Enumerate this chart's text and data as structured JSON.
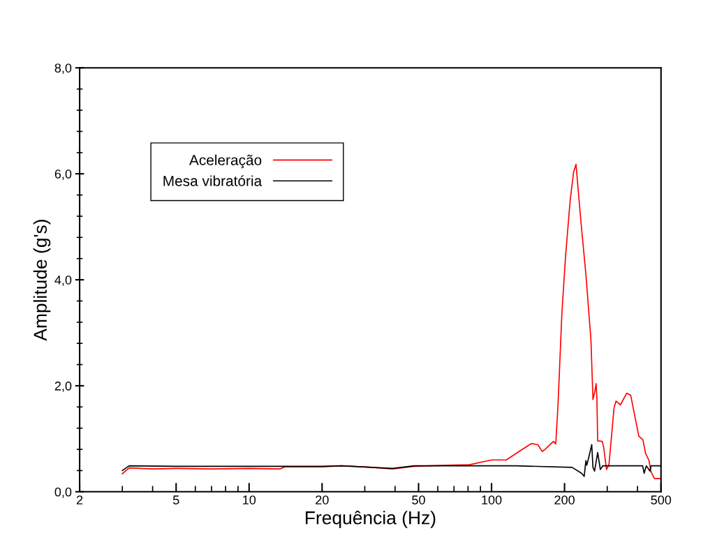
{
  "chart_data": {
    "type": "line",
    "xlabel": "Frequência (Hz)",
    "ylabel": "Amplitude (g's)",
    "log": "x",
    "grid": false,
    "legend": "top left",
    "marker": "none",
    "line_style": "solid",
    "xlim": [
      2,
      500
    ],
    "xticks": [
      2,
      5,
      10,
      20,
      50,
      100,
      200,
      500
    ],
    "ylim": [
      0,
      8
    ],
    "yticks": [
      {
        "value": 0,
        "label": "0,0"
      },
      {
        "value": 2,
        "label": "2,0"
      },
      {
        "value": 4,
        "label": "4,0"
      },
      {
        "value": 6,
        "label": "6,0"
      },
      {
        "value": 8,
        "label": "8,0"
      }
    ],
    "series": [
      {
        "name": "Aceleração",
        "color": "#ff0000",
        "x": [
          3.0,
          3.2,
          4,
          5,
          7,
          10,
          13.4,
          14,
          20,
          24,
          30,
          39,
          48,
          65,
          81,
          100,
          115,
          133,
          146,
          155,
          162,
          167,
          180,
          184,
          188,
          195,
          202,
          211,
          218,
          223,
          234,
          245,
          257,
          262,
          267,
          270,
          272,
          274,
          286,
          290,
          298,
          305,
          320,
          326,
          340,
          361,
          375,
          405,
          421,
          432,
          446,
          455,
          470,
          500
        ],
        "values": [
          0.34,
          0.45,
          0.43,
          0.44,
          0.43,
          0.44,
          0.43,
          0.47,
          0.47,
          0.49,
          0.47,
          0.43,
          0.48,
          0.5,
          0.51,
          0.6,
          0.6,
          0.79,
          0.91,
          0.89,
          0.76,
          0.81,
          0.95,
          0.9,
          1.64,
          3.36,
          4.45,
          5.5,
          6.03,
          6.18,
          5.07,
          4.1,
          2.87,
          1.74,
          1.9,
          2.04,
          1.74,
          0.96,
          0.95,
          0.84,
          0.42,
          0.51,
          1.58,
          1.71,
          1.64,
          1.86,
          1.82,
          1.05,
          0.98,
          0.72,
          0.59,
          0.37,
          0.25,
          0.25
        ]
      },
      {
        "name": "Mesa vibratória",
        "color": "#000000",
        "x": [
          3.0,
          3.2,
          5,
          10,
          20,
          24,
          39,
          48,
          126,
          215,
          235,
          241,
          245,
          247,
          250,
          259,
          262,
          266,
          274,
          281,
          288,
          420,
          426,
          435,
          450,
          455,
          500
        ],
        "values": [
          0.4,
          0.49,
          0.48,
          0.48,
          0.48,
          0.49,
          0.44,
          0.49,
          0.49,
          0.46,
          0.35,
          0.29,
          0.59,
          0.5,
          0.59,
          0.89,
          0.46,
          0.39,
          0.74,
          0.42,
          0.49,
          0.49,
          0.35,
          0.49,
          0.39,
          0.49,
          0.49
        ]
      }
    ]
  }
}
